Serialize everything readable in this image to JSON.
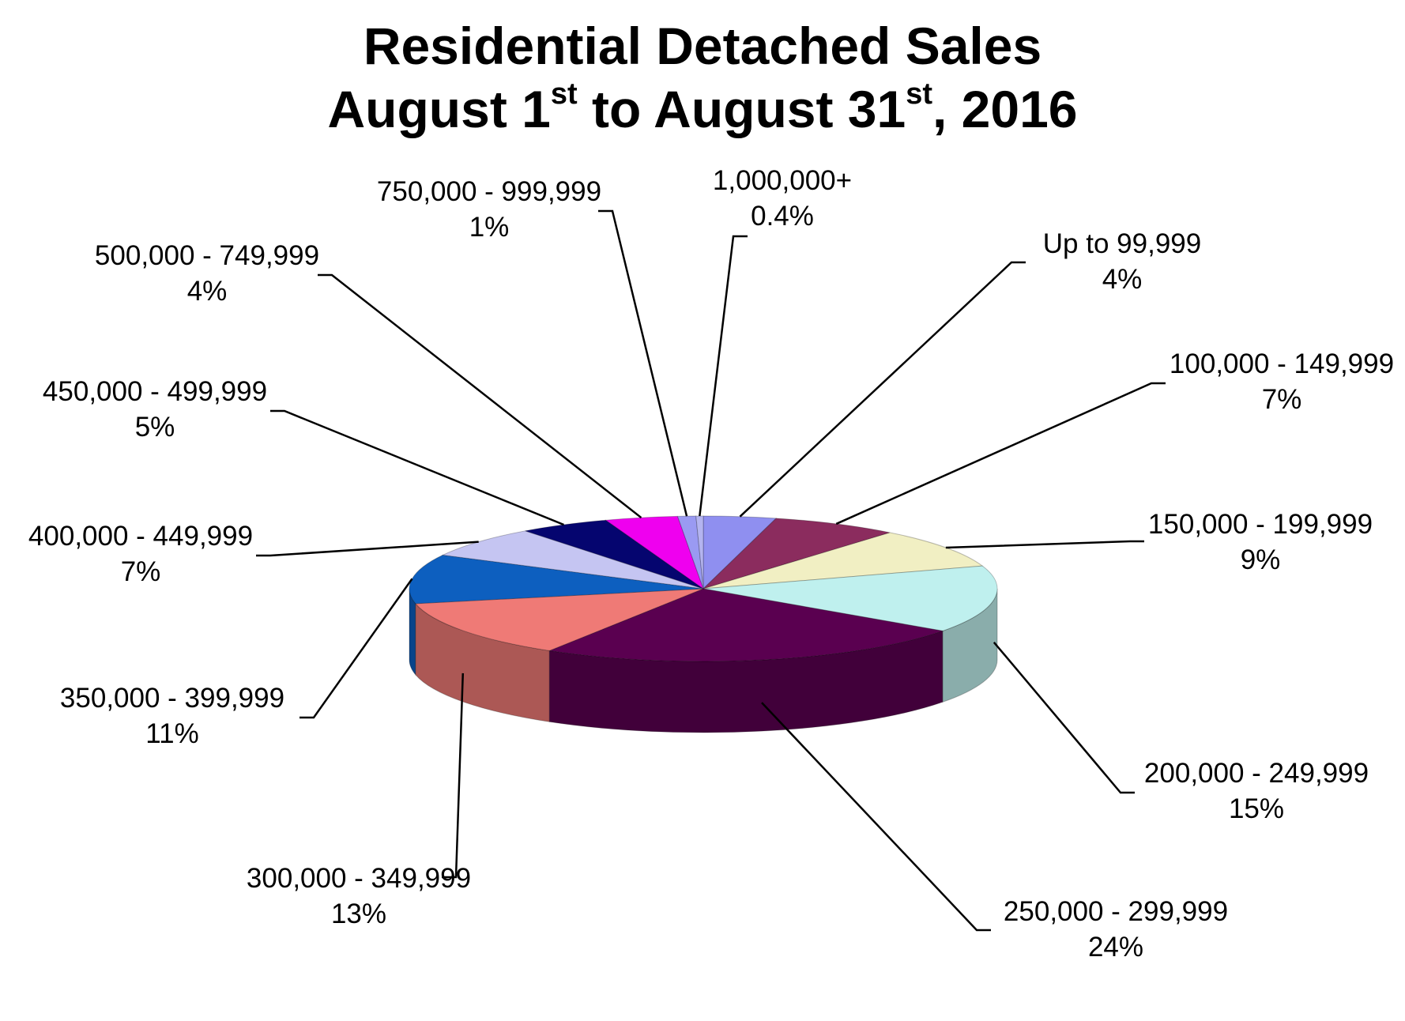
{
  "chart_data": {
    "type": "pie",
    "title_line1": "Residential Detached Sales",
    "title_line2": {
      "part1": "August 1",
      "sup1": "st",
      "part2": " to August 31",
      "sup2": "st",
      "part3": ", 2016"
    },
    "slices": [
      {
        "label": "Up to 99,999",
        "value": 4,
        "value_label": "4%",
        "color": "#8f8ff0"
      },
      {
        "label": "100,000 - 149,999",
        "value": 7,
        "value_label": "7%",
        "color": "#8b2c5e"
      },
      {
        "label": "150,000 - 199,999",
        "value": 9,
        "value_label": "9%",
        "color": "#f1efc3"
      },
      {
        "label": "200,000 - 249,999",
        "value": 15,
        "value_label": "15%",
        "color": "#bff0ee"
      },
      {
        "label": "250,000 - 299,999",
        "value": 24,
        "value_label": "24%",
        "color": "#5a0050"
      },
      {
        "label": "300,000 - 349,999",
        "value": 13,
        "value_label": "13%",
        "color": "#ef7a76"
      },
      {
        "label": "350,000 - 399,999",
        "value": 11,
        "value_label": "11%",
        "color": "#0d5fbf"
      },
      {
        "label": "400,000 - 449,999",
        "value": 7,
        "value_label": "7%",
        "color": "#c5c5f2"
      },
      {
        "label": "450,000 - 499,999",
        "value": 5,
        "value_label": "5%",
        "color": "#05056f"
      },
      {
        "label": "500,000 - 749,999",
        "value": 4,
        "value_label": "4%",
        "color": "#ef00ef"
      },
      {
        "label": "750,000 - 999,999",
        "value": 1,
        "value_label": "1%",
        "color": "#9a9af2"
      },
      {
        "label": "1,000,000+",
        "value": 0.4,
        "value_label": "0.4%",
        "color": "#b4b4f0"
      }
    ]
  }
}
